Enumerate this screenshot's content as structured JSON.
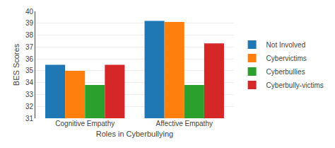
{
  "chart_data": {
    "type": "bar",
    "xlabel": "Roles in Cyberbullying",
    "ylabel": "BES Scores",
    "categories": [
      "Cognitive Empathy",
      "Affective Empathy"
    ],
    "series": [
      {
        "name": "Not Involved",
        "values": [
          35.5,
          39.2
        ]
      },
      {
        "name": "Cybervictims",
        "values": [
          35.0,
          39.1
        ]
      },
      {
        "name": "Cyberbullies",
        "values": [
          33.8,
          33.8
        ]
      },
      {
        "name": "Cyberbully-victims",
        "values": [
          35.5,
          37.3
        ]
      }
    ],
    "ylim": [
      31,
      40
    ],
    "yticks": [
      31,
      32,
      33,
      34,
      35,
      36,
      37,
      38,
      39,
      40
    ],
    "grid": true,
    "legend": "right"
  }
}
